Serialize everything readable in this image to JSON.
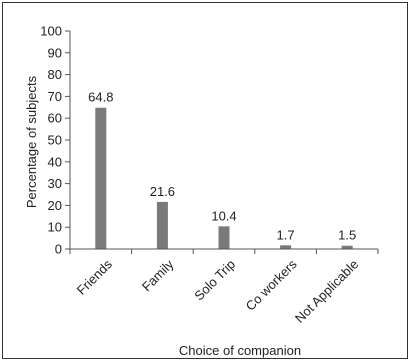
{
  "chart_data": {
    "type": "bar",
    "categories": [
      "Friends",
      "Family",
      "Solo Trip",
      "Co workers",
      "Not Applicable"
    ],
    "values": [
      64.8,
      21.6,
      10.4,
      1.7,
      1.5
    ],
    "data_labels": [
      "64.8",
      "21.6",
      "10.4",
      "1.7",
      "1.5"
    ],
    "xlabel": "Choice of companion",
    "ylabel": "Percentage of subjects",
    "ylim": [
      0,
      100
    ],
    "yticks": [
      0,
      10,
      20,
      30,
      40,
      50,
      60,
      70,
      80,
      90,
      100
    ],
    "bar_color": "#7a7a7a",
    "grid": false,
    "legend": "none"
  }
}
